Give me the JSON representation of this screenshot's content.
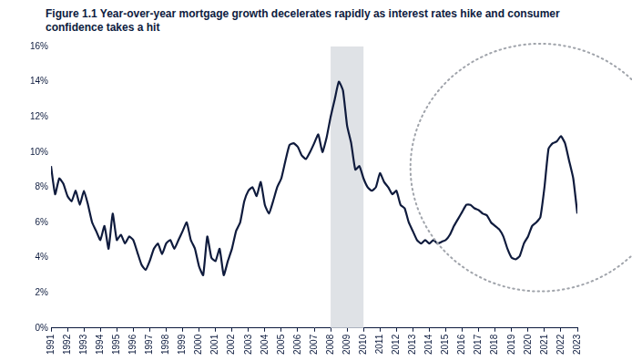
{
  "chart_data": {
    "type": "line",
    "title": "Figure 1.1  Year-over-year mortgage growth decelerates rapidly as interest rates hike and consumer confidence takes a hit",
    "categories": [
      "1991",
      null,
      null,
      null,
      "1992",
      null,
      null,
      null,
      "1993",
      null,
      null,
      null,
      "1994",
      null,
      null,
      null,
      "1995",
      null,
      null,
      null,
      "1996",
      null,
      null,
      null,
      "1997",
      null,
      null,
      null,
      "1998",
      null,
      null,
      null,
      "1999",
      null,
      null,
      null,
      "2000",
      null,
      null,
      null,
      "2001",
      null,
      null,
      null,
      "2002",
      null,
      null,
      null,
      "2003",
      null,
      null,
      null,
      "2004",
      null,
      null,
      null,
      "2005",
      null,
      null,
      null,
      "2006",
      null,
      null,
      null,
      "2007",
      null,
      null,
      null,
      "2008",
      null,
      null,
      null,
      "2009",
      null,
      null,
      null,
      "2010",
      null,
      null,
      null,
      "2011",
      null,
      null,
      null,
      "2012",
      null,
      null,
      null,
      "2013",
      null,
      null,
      null,
      "2014",
      null,
      null,
      null,
      "2015",
      null,
      null,
      null,
      "2016",
      null,
      null,
      null,
      "2017",
      null,
      null,
      null,
      "2018",
      null,
      null,
      null,
      "2019",
      null,
      null,
      null,
      "2020",
      null,
      null,
      null,
      "2021",
      null,
      null,
      null,
      "2022",
      null,
      null,
      null,
      "2023"
    ],
    "values": [
      9.2,
      7.6,
      8.5,
      8.2,
      7.5,
      7.2,
      7.8,
      7.0,
      7.8,
      7.0,
      6.0,
      5.5,
      5.0,
      5.8,
      4.5,
      6.5,
      5.0,
      5.3,
      4.8,
      5.2,
      5.0,
      4.3,
      3.6,
      3.3,
      3.8,
      4.5,
      4.8,
      4.2,
      4.8,
      5.0,
      4.5,
      5.0,
      5.5,
      6.0,
      5.0,
      4.5,
      3.5,
      3.0,
      5.2,
      4.0,
      3.8,
      4.5,
      3.0,
      3.8,
      4.5,
      5.5,
      6.0,
      7.2,
      7.8,
      8.0,
      7.5,
      8.3,
      7.0,
      6.5,
      7.2,
      8.0,
      8.5,
      9.5,
      10.4,
      10.5,
      10.3,
      9.8,
      9.6,
      10.0,
      10.5,
      11.0,
      10.0,
      10.8,
      12.0,
      13.0,
      14.0,
      13.5,
      11.5,
      10.5,
      9.0,
      9.2,
      8.5,
      8.0,
      7.8,
      8.0,
      8.8,
      8.3,
      8.0,
      7.6,
      7.8,
      7.0,
      6.8,
      6.0,
      5.5,
      5.0,
      4.8,
      5.0,
      4.8,
      5.0,
      4.8,
      4.9,
      5.0,
      5.3,
      5.8,
      6.2,
      6.6,
      7.0,
      7.0,
      6.8,
      6.7,
      6.5,
      6.4,
      6.0,
      5.8,
      5.6,
      5.2,
      4.5,
      4.0,
      3.9,
      4.1,
      4.8,
      5.2,
      5.8,
      6.0,
      6.3,
      8.0,
      10.2,
      10.5,
      10.6,
      10.9,
      10.5,
      9.5,
      8.5,
      6.5
    ],
    "color": "#0f1b3d",
    "shaded_period": {
      "start": "2008",
      "end": "2010"
    },
    "ylim": [
      0,
      16
    ],
    "yticks": [
      {
        "value": 0,
        "label": "0%"
      },
      {
        "value": 2,
        "label": "2%"
      },
      {
        "value": 4,
        "label": "4%"
      },
      {
        "value": 6,
        "label": "6%"
      },
      {
        "value": 8,
        "label": "8%"
      },
      {
        "value": 10,
        "label": "10%"
      },
      {
        "value": 12,
        "label": "12%"
      },
      {
        "value": 14,
        "label": "14%"
      },
      {
        "value": 16,
        "label": "16%"
      }
    ],
    "grid": false
  }
}
